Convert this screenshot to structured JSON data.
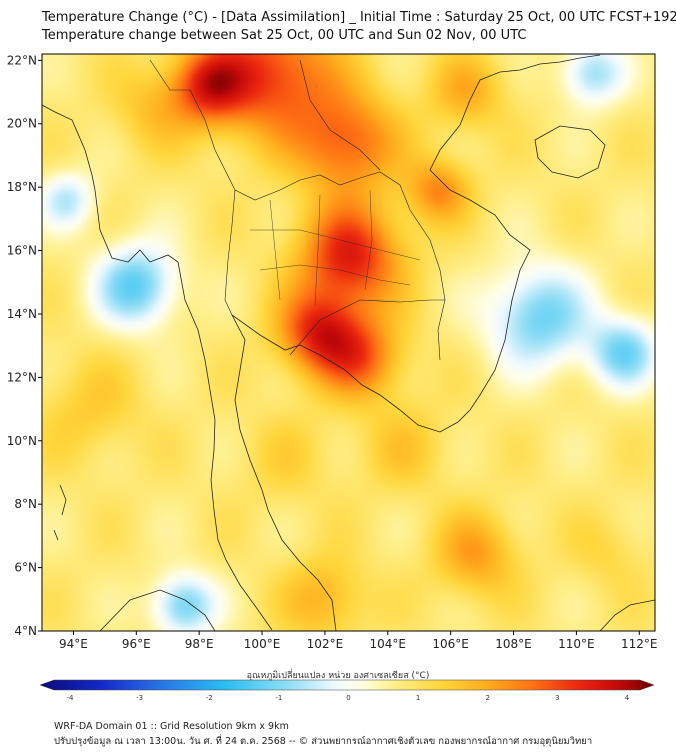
{
  "title": {
    "line1": "Temperature Change (°C) - [Data Assimilation] _ Initial Time : Saturday 25 Oct, 00 UTC FCST+192",
    "line2": "Temperature change between Sat 25 Oct, 00 UTC and Sun 02 Nov, 00 UTC"
  },
  "map": {
    "lon_range": [
      93,
      112.5
    ],
    "lat_range": [
      4,
      22.2
    ],
    "lat_ticks": [
      "22°N",
      "20°N",
      "18°N",
      "16°N",
      "14°N",
      "12°N",
      "10°N",
      "8°N",
      "6°N",
      "4°N"
    ],
    "lat_values": [
      22,
      20,
      18,
      16,
      14,
      12,
      10,
      8,
      6,
      4
    ],
    "lon_ticks": [
      "94°E",
      "96°E",
      "98°E",
      "100°E",
      "102°E",
      "104°E",
      "106°E",
      "108°E",
      "110°E",
      "112°E"
    ],
    "lon_values": [
      94,
      96,
      98,
      100,
      102,
      104,
      106,
      108,
      110,
      112
    ],
    "field_blobs": [
      {
        "lon": 102.8,
        "lat": 15.8,
        "value": 3.0,
        "spread": 1.6
      },
      {
        "lon": 101.8,
        "lat": 13.4,
        "value": 2.8,
        "spread": 1.3
      },
      {
        "lon": 100.3,
        "lat": 21.6,
        "value": 2.7,
        "spread": 2.0
      },
      {
        "lon": 98.3,
        "lat": 21.2,
        "value": 2.6,
        "spread": 1.2
      },
      {
        "lon": 102.7,
        "lat": 19.4,
        "value": 2.4,
        "spread": 1.6
      },
      {
        "lon": 103.2,
        "lat": 12.6,
        "value": 2.2,
        "spread": 1.3
      },
      {
        "lon": 105.6,
        "lat": 17.9,
        "value": 2.0,
        "spread": 1.0
      },
      {
        "lon": 96.0,
        "lat": 14.9,
        "value": -1.3,
        "spread": 1.3
      },
      {
        "lon": 108.8,
        "lat": 13.9,
        "value": -1.2,
        "spread": 1.6
      },
      {
        "lon": 111.5,
        "lat": 12.8,
        "value": -1.1,
        "spread": 1.1
      },
      {
        "lon": 110.5,
        "lat": 21.6,
        "value": -0.9,
        "spread": 1.0
      },
      {
        "lon": 97.5,
        "lat": 4.8,
        "value": -1.2,
        "spread": 1.0
      },
      {
        "lon": 93.8,
        "lat": 17.6,
        "value": -0.6,
        "spread": 0.9
      },
      {
        "lon": 100.8,
        "lat": 9.4,
        "value": 1.0,
        "spread": 1.5
      },
      {
        "lon": 106.8,
        "lat": 6.4,
        "value": 1.8,
        "spread": 1.3
      },
      {
        "lon": 102.0,
        "lat": 5.0,
        "value": 1.6,
        "spread": 1.3
      },
      {
        "lon": 94.5,
        "lat": 11.0,
        "value": 1.2,
        "spread": 1.6
      },
      {
        "lon": 104.5,
        "lat": 9.8,
        "value": 1.2,
        "spread": 1.4
      },
      {
        "lon": 111.0,
        "lat": 6.5,
        "value": 1.0,
        "spread": 1.2
      },
      {
        "lon": 96.5,
        "lat": 20.5,
        "value": 1.3,
        "spread": 1.3
      },
      {
        "lon": 106.5,
        "lat": 21.0,
        "value": 1.6,
        "spread": 1.2
      }
    ]
  },
  "colorbar": {
    "title": "อุณหภูมิเปลี่ยนแปลง หน่วย องศาเซลเซียส (°C)",
    "min": -4,
    "max": 4,
    "labels": [
      "-4",
      "-3",
      "-2",
      "-1",
      "0",
      "1",
      "2",
      "3",
      "4"
    ],
    "label_values": [
      -4,
      -3,
      -2,
      -1,
      0,
      1,
      2,
      3,
      4
    ]
  },
  "footer": {
    "line1": "WRF-DA Domain 01 :: Grid Resolution 9km x 9km",
    "line2": "ปรับปรุงข้อมูล ณ เวลา 13:00น. วัน ศ. ที่ 24 ต.ค. 2568 -- © ส่วนพยากรณ์อากาศเชิงตัวเลข กองพยากรณ์อากาศ กรมอุตุนิยมวิทยา"
  }
}
